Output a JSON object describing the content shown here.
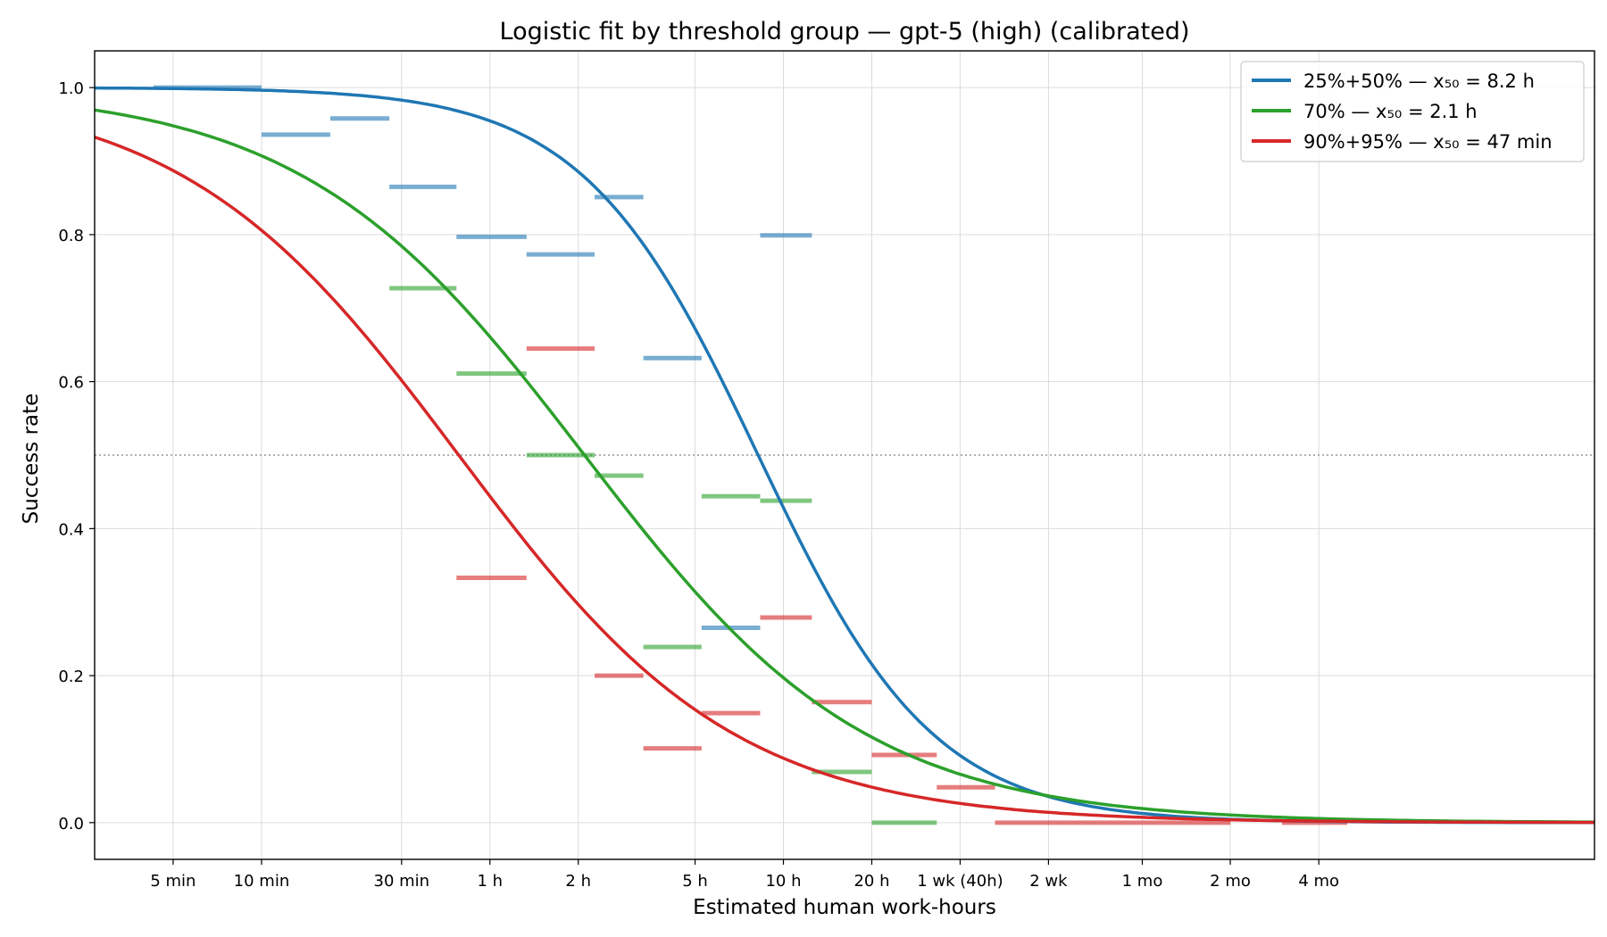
{
  "chart_data": {
    "type": "line",
    "title": "Logistic fit by threshold group — gpt-5 (high) (calibrated)",
    "xlabel": "Estimated human work-hours",
    "ylabel": "Success rate",
    "x_scale": "log",
    "x_unit": "hours",
    "xlim": [
      0.045,
      5800
    ],
    "ylim": [
      -0.05,
      1.05
    ],
    "grid": true,
    "legend_position": "top-right",
    "reference_line": {
      "y": 0.5,
      "style": "dotted"
    },
    "x_ticks": [
      {
        "value": 0.0833,
        "label": "5 min"
      },
      {
        "value": 0.1667,
        "label": "10 min"
      },
      {
        "value": 0.5,
        "label": "30 min"
      },
      {
        "value": 1,
        "label": "1 h"
      },
      {
        "value": 2,
        "label": "2 h"
      },
      {
        "value": 5,
        "label": "5 h"
      },
      {
        "value": 10,
        "label": "10 h"
      },
      {
        "value": 20,
        "label": "20 h"
      },
      {
        "value": 40,
        "label": "1 wk (40h)"
      },
      {
        "value": 80,
        "label": "2 wk"
      },
      {
        "value": 167,
        "label": "1 mo"
      },
      {
        "value": 333,
        "label": "2 mo"
      },
      {
        "value": 667,
        "label": "4 mo"
      }
    ],
    "y_ticks": [
      {
        "value": 0.0,
        "label": "0.0"
      },
      {
        "value": 0.2,
        "label": "0.2"
      },
      {
        "value": 0.4,
        "label": "0.4"
      },
      {
        "value": 0.6,
        "label": "0.6"
      },
      {
        "value": 0.8,
        "label": "0.8"
      },
      {
        "value": 1.0,
        "label": "1.0"
      }
    ],
    "series": [
      {
        "name": "25%+50% — x₅₀ = 8.2 h",
        "color": "#1f77b4",
        "x50_hours": 8.2,
        "logistic_slope": 1.45,
        "bins": [
          {
            "x0": 0.0714,
            "x1": 0.1097,
            "y": 1.0
          },
          {
            "x0": 0.1097,
            "x1": 0.1667,
            "y": 1.0
          },
          {
            "x0": 0.1667,
            "x1": 0.2857,
            "y": 0.936
          },
          {
            "x0": 0.2857,
            "x1": 0.4545,
            "y": 0.958
          },
          {
            "x0": 0.4545,
            "x1": 0.7692,
            "y": 0.865
          },
          {
            "x0": 0.7692,
            "x1": 1.333,
            "y": 0.797
          },
          {
            "x0": 1.333,
            "x1": 2.273,
            "y": 0.773
          },
          {
            "x0": 2.273,
            "x1": 3.333,
            "y": 0.851
          },
          {
            "x0": 3.333,
            "x1": 5.263,
            "y": 0.632
          },
          {
            "x0": 5.263,
            "x1": 8.333,
            "y": 0.265
          },
          {
            "x0": 8.333,
            "x1": 12.5,
            "y": 0.799
          }
        ]
      },
      {
        "name": "70% — x₅₀ = 2.1 h",
        "color": "#2ca02c",
        "x50_hours": 2.1,
        "logistic_slope": 0.9,
        "bins": [
          {
            "x0": 0.4545,
            "x1": 0.7692,
            "y": 0.727
          },
          {
            "x0": 0.7692,
            "x1": 1.333,
            "y": 0.611
          },
          {
            "x0": 1.333,
            "x1": 2.273,
            "y": 0.5
          },
          {
            "x0": 2.273,
            "x1": 3.333,
            "y": 0.472
          },
          {
            "x0": 3.333,
            "x1": 5.263,
            "y": 0.239
          },
          {
            "x0": 5.263,
            "x1": 8.333,
            "y": 0.444
          },
          {
            "x0": 8.333,
            "x1": 12.5,
            "y": 0.438
          },
          {
            "x0": 12.5,
            "x1": 20,
            "y": 0.069
          },
          {
            "x0": 20,
            "x1": 33.3,
            "y": 0.0
          }
        ]
      },
      {
        "name": "90%+95% — x₅₀ = 47 min",
        "color": "#d62728",
        "x50_hours": 0.783,
        "logistic_slope": 0.92,
        "bins": [
          {
            "x0": 0.7692,
            "x1": 1.333,
            "y": 0.333
          },
          {
            "x0": 1.333,
            "x1": 2.273,
            "y": 0.645
          },
          {
            "x0": 2.273,
            "x1": 3.333,
            "y": 0.2
          },
          {
            "x0": 3.333,
            "x1": 5.263,
            "y": 0.101
          },
          {
            "x0": 5.263,
            "x1": 8.333,
            "y": 0.149
          },
          {
            "x0": 8.333,
            "x1": 12.5,
            "y": 0.279
          },
          {
            "x0": 12.5,
            "x1": 20,
            "y": 0.164
          },
          {
            "x0": 20,
            "x1": 33.3,
            "y": 0.092
          },
          {
            "x0": 33.3,
            "x1": 52.6,
            "y": 0.048
          },
          {
            "x0": 52.6,
            "x1": 90.9,
            "y": 0.0
          },
          {
            "x0": 90.9,
            "x1": 166.7,
            "y": 0.0
          },
          {
            "x0": 166.7,
            "x1": 333.3,
            "y": 0.0
          },
          {
            "x0": 500,
            "x1": 833.3,
            "y": 0.0
          }
        ]
      }
    ]
  }
}
